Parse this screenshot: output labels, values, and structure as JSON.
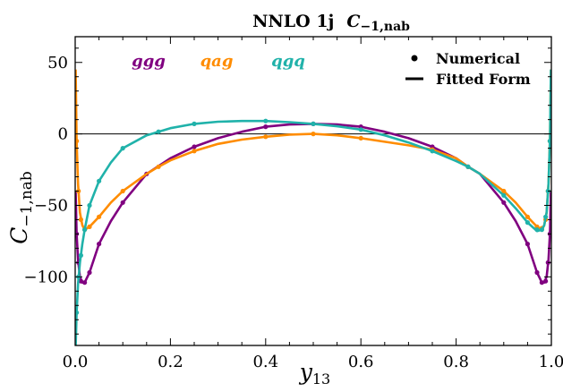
{
  "title": {
    "prefix": "NNLO 1j",
    "symbol": "C",
    "subscript": "−1,nab"
  },
  "axes": {
    "ylabel_symbol": "C",
    "ylabel_sub": "−1,nab",
    "xlabel_symbol": "y",
    "xlabel_sub": "13"
  },
  "series_labels": [
    "ggg",
    "qag",
    "qgq"
  ],
  "legend": {
    "numerical": "Numerical",
    "fitted": "Fitted Form"
  },
  "chart_data": {
    "type": "line",
    "xlim": [
      0.0,
      1.0
    ],
    "ylim": [
      -148,
      68
    ],
    "x_ticks": [
      0.0,
      0.2,
      0.4,
      0.6,
      0.8,
      1.0
    ],
    "x_tick_labels": [
      "0.0",
      "0.2",
      "0.4",
      "0.6",
      "0.8",
      "1.0"
    ],
    "y_ticks": [
      50,
      0,
      -50,
      -100
    ],
    "y_tick_labels": [
      "50",
      "0",
      "−50",
      "−100"
    ],
    "zero_line": true,
    "grid": false,
    "legend_position": "top-right",
    "series": [
      {
        "name": "ggg",
        "color": "#800080",
        "points": [
          [
            0.003,
            -70
          ],
          [
            0.007,
            -90
          ],
          [
            0.012,
            -103
          ],
          [
            0.02,
            -104
          ],
          [
            0.03,
            -97
          ],
          [
            0.05,
            -77
          ],
          [
            0.1,
            -48
          ],
          [
            0.15,
            -28
          ],
          [
            0.25,
            -9
          ],
          [
            0.4,
            5
          ],
          [
            0.5,
            7
          ],
          [
            0.6,
            5
          ],
          [
            0.75,
            -9
          ],
          [
            0.825,
            -23
          ],
          [
            0.9,
            -48
          ],
          [
            0.95,
            -77
          ],
          [
            0.97,
            -97
          ],
          [
            0.98,
            -104
          ],
          [
            0.988,
            -103
          ],
          [
            0.993,
            -90
          ],
          [
            0.997,
            -70
          ]
        ],
        "curve": [
          [
            0.001,
            -40
          ],
          [
            0.003,
            -70
          ],
          [
            0.006,
            -88
          ],
          [
            0.01,
            -100
          ],
          [
            0.015,
            -104
          ],
          [
            0.02,
            -104
          ],
          [
            0.03,
            -97
          ],
          [
            0.05,
            -77
          ],
          [
            0.075,
            -61
          ],
          [
            0.1,
            -48
          ],
          [
            0.15,
            -28
          ],
          [
            0.2,
            -17
          ],
          [
            0.25,
            -9
          ],
          [
            0.3,
            -3
          ],
          [
            0.35,
            1.5
          ],
          [
            0.4,
            5
          ],
          [
            0.45,
            6.6
          ],
          [
            0.5,
            7
          ],
          [
            0.55,
            6.6
          ],
          [
            0.6,
            5
          ],
          [
            0.65,
            1.5
          ],
          [
            0.7,
            -3
          ],
          [
            0.75,
            -9
          ],
          [
            0.8,
            -17
          ],
          [
            0.825,
            -23
          ],
          [
            0.85,
            -28
          ],
          [
            0.9,
            -48
          ],
          [
            0.925,
            -61
          ],
          [
            0.95,
            -77
          ],
          [
            0.97,
            -97
          ],
          [
            0.98,
            -104
          ],
          [
            0.985,
            -104
          ],
          [
            0.99,
            -100
          ],
          [
            0.994,
            -88
          ],
          [
            0.997,
            -70
          ],
          [
            0.999,
            -40
          ]
        ]
      },
      {
        "name": "qag",
        "color": "#ff8c00",
        "points": [
          [
            0.003,
            -5
          ],
          [
            0.007,
            -40
          ],
          [
            0.012,
            -60
          ],
          [
            0.02,
            -67
          ],
          [
            0.03,
            -65
          ],
          [
            0.05,
            -58
          ],
          [
            0.1,
            -40
          ],
          [
            0.175,
            -23
          ],
          [
            0.25,
            -12
          ],
          [
            0.4,
            -2
          ],
          [
            0.5,
            0
          ],
          [
            0.6,
            -3
          ],
          [
            0.75,
            -11
          ],
          [
            0.825,
            -23
          ],
          [
            0.9,
            -40
          ],
          [
            0.95,
            -58
          ],
          [
            0.97,
            -65
          ],
          [
            0.98,
            -66
          ],
          [
            0.988,
            -60
          ],
          [
            0.993,
            -40
          ],
          [
            0.997,
            -5
          ]
        ],
        "curve": [
          [
            0.001,
            45
          ],
          [
            0.003,
            -5
          ],
          [
            0.006,
            -35
          ],
          [
            0.01,
            -55
          ],
          [
            0.015,
            -64
          ],
          [
            0.02,
            -67
          ],
          [
            0.03,
            -65
          ],
          [
            0.05,
            -58
          ],
          [
            0.075,
            -48
          ],
          [
            0.1,
            -40
          ],
          [
            0.15,
            -28
          ],
          [
            0.175,
            -23
          ],
          [
            0.2,
            -18.5
          ],
          [
            0.25,
            -12
          ],
          [
            0.3,
            -7
          ],
          [
            0.35,
            -4
          ],
          [
            0.4,
            -2
          ],
          [
            0.45,
            -0.5
          ],
          [
            0.5,
            0
          ],
          [
            0.55,
            -1
          ],
          [
            0.6,
            -3
          ],
          [
            0.65,
            -5.5
          ],
          [
            0.7,
            -8
          ],
          [
            0.75,
            -11
          ],
          [
            0.8,
            -17
          ],
          [
            0.825,
            -23
          ],
          [
            0.85,
            -28
          ],
          [
            0.9,
            -40
          ],
          [
            0.925,
            -48
          ],
          [
            0.95,
            -58
          ],
          [
            0.97,
            -65
          ],
          [
            0.98,
            -67
          ],
          [
            0.985,
            -64
          ],
          [
            0.99,
            -55
          ],
          [
            0.994,
            -35
          ],
          [
            0.997,
            -5
          ],
          [
            0.999,
            45
          ]
        ]
      },
      {
        "name": "qgq",
        "color": "#20b2aa",
        "points": [
          [
            0.003,
            -125
          ],
          [
            0.007,
            -100
          ],
          [
            0.012,
            -85
          ],
          [
            0.02,
            -67
          ],
          [
            0.03,
            -50
          ],
          [
            0.05,
            -33
          ],
          [
            0.1,
            -10
          ],
          [
            0.175,
            1.5
          ],
          [
            0.25,
            7
          ],
          [
            0.4,
            9
          ],
          [
            0.5,
            7
          ],
          [
            0.6,
            3
          ],
          [
            0.75,
            -12
          ],
          [
            0.825,
            -23
          ],
          [
            0.9,
            -43
          ],
          [
            0.95,
            -62
          ],
          [
            0.97,
            -67
          ],
          [
            0.98,
            -67
          ],
          [
            0.988,
            -58
          ],
          [
            0.993,
            -40
          ],
          [
            0.997,
            -5
          ]
        ],
        "curve": [
          [
            0.001,
            -150
          ],
          [
            0.003,
            -125
          ],
          [
            0.006,
            -105
          ],
          [
            0.01,
            -90
          ],
          [
            0.015,
            -77
          ],
          [
            0.02,
            -67
          ],
          [
            0.03,
            -50
          ],
          [
            0.05,
            -33
          ],
          [
            0.075,
            -20
          ],
          [
            0.1,
            -10
          ],
          [
            0.15,
            -1
          ],
          [
            0.175,
            1.5
          ],
          [
            0.2,
            4
          ],
          [
            0.25,
            7
          ],
          [
            0.3,
            8.5
          ],
          [
            0.35,
            9
          ],
          [
            0.4,
            9
          ],
          [
            0.45,
            8.2
          ],
          [
            0.5,
            7
          ],
          [
            0.55,
            5.3
          ],
          [
            0.6,
            3
          ],
          [
            0.65,
            -1
          ],
          [
            0.7,
            -6
          ],
          [
            0.75,
            -12
          ],
          [
            0.8,
            -19
          ],
          [
            0.825,
            -23
          ],
          [
            0.85,
            -28
          ],
          [
            0.9,
            -43
          ],
          [
            0.925,
            -52
          ],
          [
            0.95,
            -62
          ],
          [
            0.97,
            -68
          ],
          [
            0.98,
            -67
          ],
          [
            0.985,
            -64
          ],
          [
            0.99,
            -55
          ],
          [
            0.994,
            -35
          ],
          [
            0.997,
            -5
          ],
          [
            0.999,
            45
          ]
        ]
      }
    ]
  }
}
